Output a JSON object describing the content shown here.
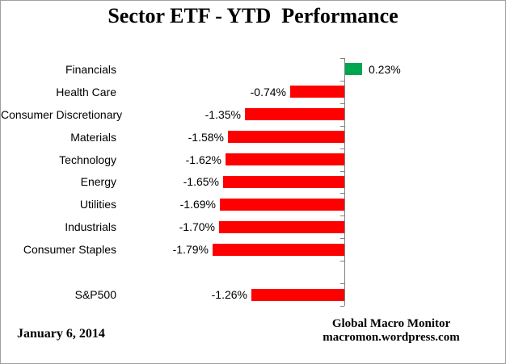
{
  "chart_data": {
    "type": "bar",
    "orientation": "horizontal",
    "title": "Sector ETF - YTD  Performance",
    "categories": [
      "Financials",
      "Health Care",
      "Consumer Discretionary",
      "Materials",
      "Technology",
      "Energy",
      "Utilities",
      "Industrials",
      "Consumer Staples",
      "",
      "S&P500"
    ],
    "values": [
      0.23,
      -0.74,
      -1.35,
      -1.58,
      -1.62,
      -1.65,
      -1.69,
      -1.7,
      -1.79,
      null,
      -1.26
    ],
    "value_labels": [
      "0.23%",
      "-0.74%",
      "-1.35%",
      "-1.58%",
      "-1.62%",
      "-1.65%",
      "-1.69%",
      "-1.70%",
      "-1.79%",
      "",
      "-1.26%"
    ],
    "xlim": [
      -2.0,
      0.5
    ],
    "grid": false,
    "legend": false,
    "data_labels": "outside-end",
    "colors": {
      "positive": "#00A550",
      "negative": "#FF0000",
      "axis": "#808080",
      "text": "#000000",
      "border": "#A0A0A0"
    }
  },
  "footer": {
    "date": "January 6, 2014",
    "brand_line1": "Global Macro Monitor",
    "brand_line2": "macromon.wordpress.com"
  }
}
